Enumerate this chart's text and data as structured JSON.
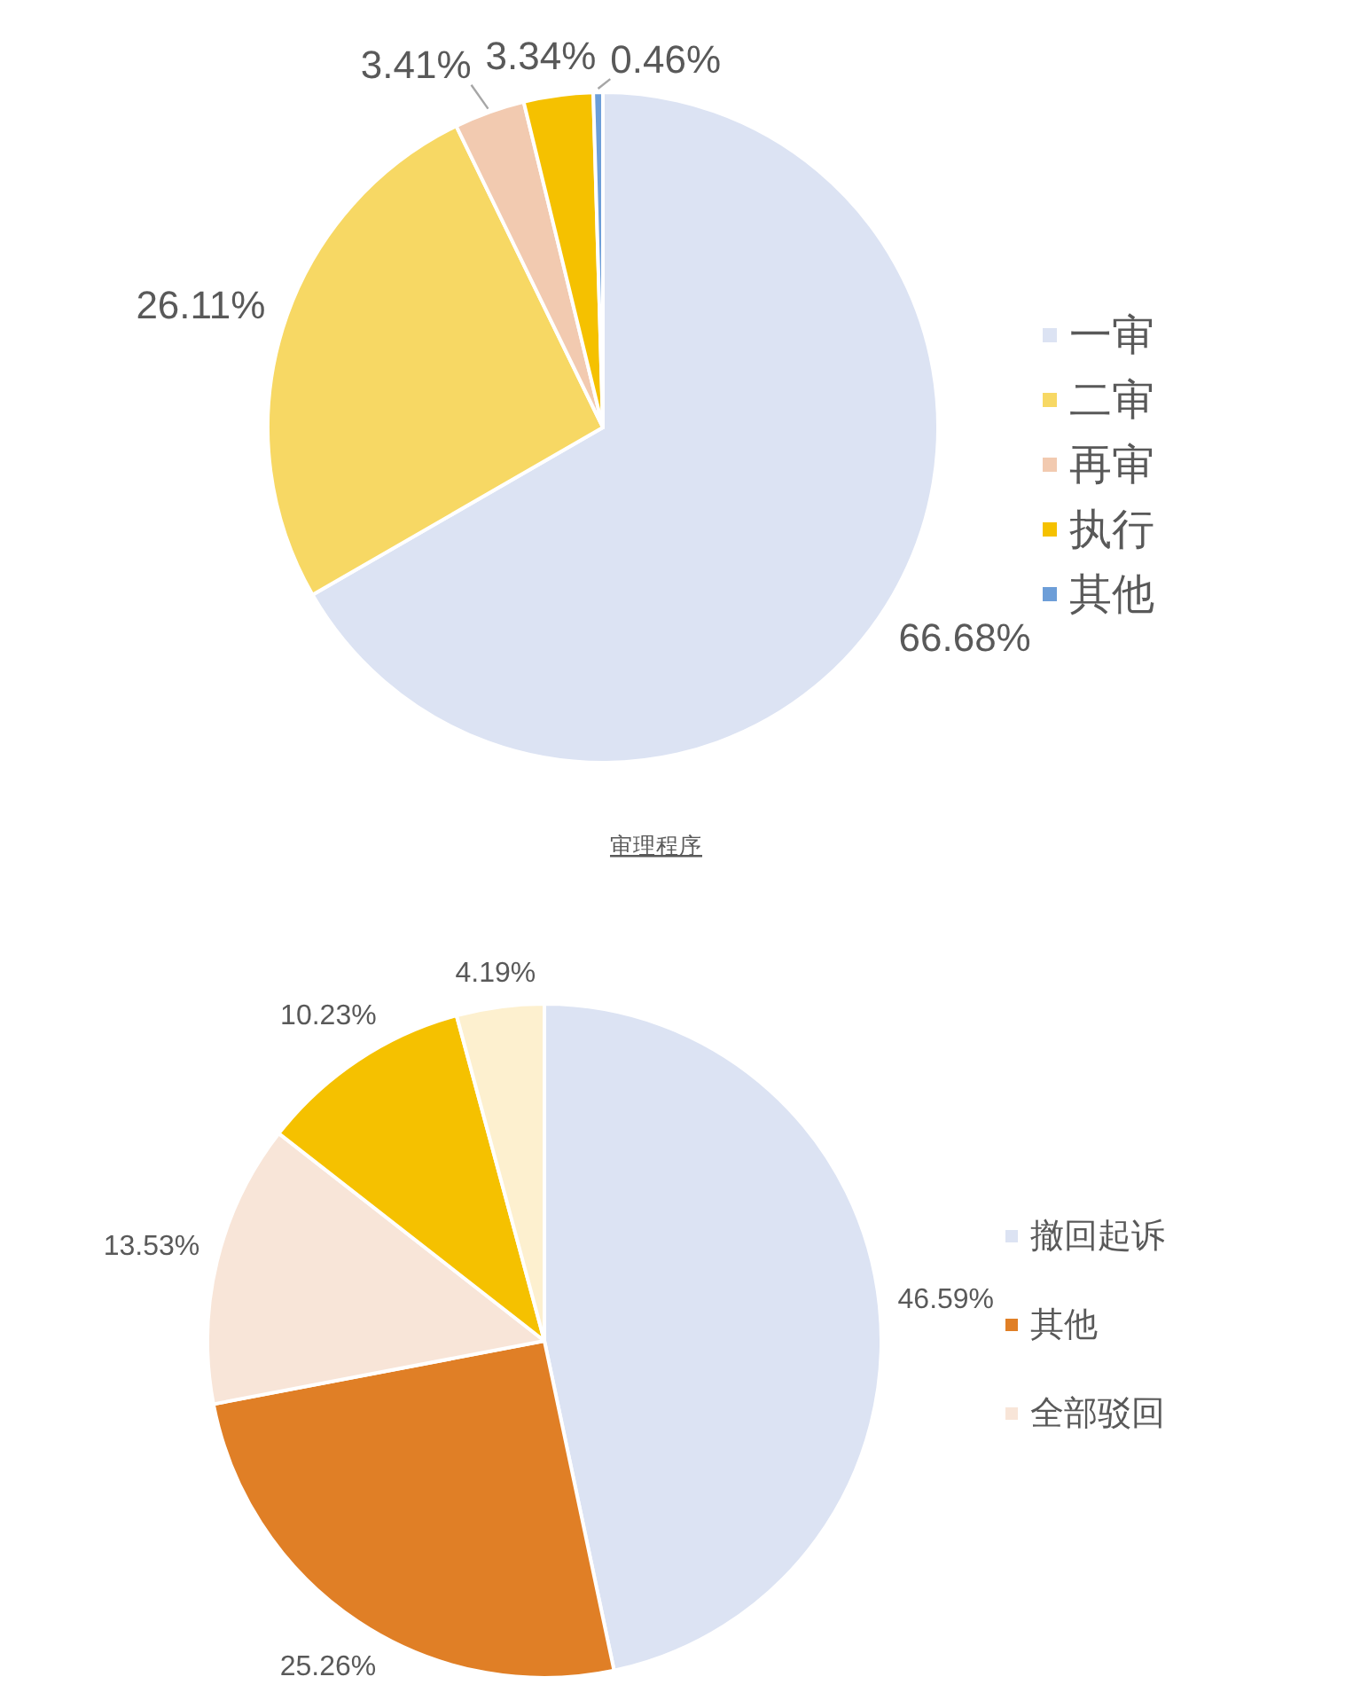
{
  "chart_data": [
    {
      "type": "pie",
      "title": "审理程序",
      "categories": [
        "一审",
        "二审",
        "再审",
        "执行",
        "其他"
      ],
      "values": [
        66.68,
        26.11,
        3.41,
        3.34,
        0.46
      ],
      "colors": [
        "#dce3f3",
        "#f7d864",
        "#f2cab0",
        "#f5c100",
        "#6d9ed8"
      ],
      "value_labels": [
        "66.68%",
        "26.11%",
        "3.41%",
        "3.34%",
        "0.46%"
      ],
      "legend": "right"
    },
    {
      "type": "pie",
      "categories": [
        "撤回起诉",
        "其他",
        "全部驳回",
        null,
        null
      ],
      "values": [
        46.59,
        25.26,
        13.53,
        10.23,
        4.19
      ],
      "colors": [
        "#dce3f3",
        "#e07f26",
        "#f8e5d8",
        "#f5c100",
        "#fdf0cf"
      ],
      "value_labels": [
        "46.59%",
        "25.26%",
        "13.53%",
        "10.23%",
        "4.19%"
      ],
      "legend": "right"
    }
  ]
}
